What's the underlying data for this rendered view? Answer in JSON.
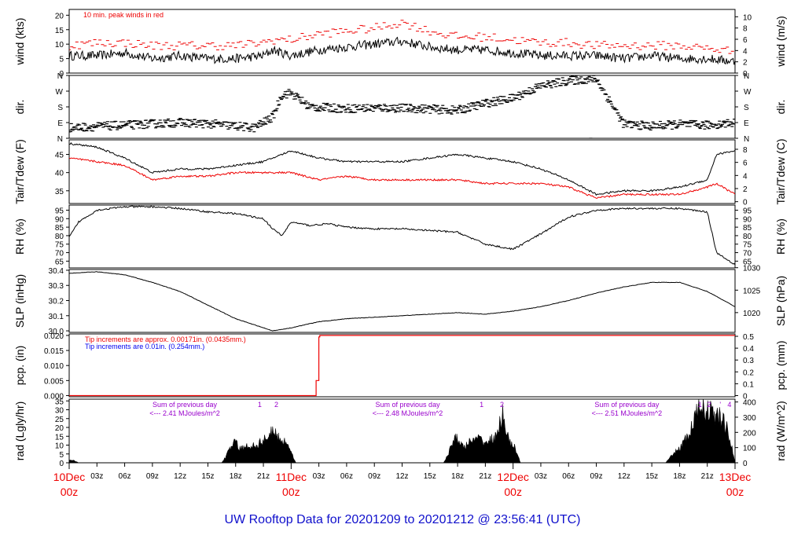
{
  "footer_title": "UW Rooftop Data for 20201209  to  20201212 @ 23:56:41  (UTC)",
  "colors": {
    "red": "#ee0000",
    "blue": "#0000ee",
    "purple": "#9900cc",
    "footer": "#1010cc",
    "black": "#000000"
  },
  "time_axis": {
    "hours_total": 72,
    "tick_hours": [
      3,
      6,
      9,
      12,
      15,
      18,
      21,
      27,
      30,
      33,
      36,
      39,
      42,
      45,
      51,
      54,
      57,
      60,
      63,
      66,
      69
    ],
    "tick_labels": [
      "03z",
      "06z",
      "09z",
      "12z",
      "15z",
      "18z",
      "21z",
      "03z",
      "06z",
      "09z",
      "12z",
      "15z",
      "18z",
      "21z",
      "03z",
      "06z",
      "09z",
      "12z",
      "15z",
      "18z",
      "21z"
    ],
    "day_marks": [
      {
        "hour": 0,
        "label": "10Dec",
        "sub": "00z"
      },
      {
        "hour": 24,
        "label": "11Dec",
        "sub": "00z"
      },
      {
        "hour": 48,
        "label": "12Dec",
        "sub": "00z"
      },
      {
        "hour": 72,
        "label": "13Dec",
        "sub": "00z"
      }
    ]
  },
  "chart_data": [
    {
      "id": "wind",
      "type": "line",
      "ylabel": "wind (kts)",
      "y2label": "wind (m/s)",
      "ylim": [
        0,
        22
      ],
      "yticks": [
        0,
        5,
        10,
        15,
        20
      ],
      "y2lim": [
        0,
        11.3
      ],
      "y2ticks": [
        0,
        2,
        4,
        6,
        8,
        10
      ],
      "annotation": "10 min. peak winds in red",
      "series": [
        {
          "name": "wind",
          "color": "#000000",
          "x": [
            0,
            3,
            6,
            9,
            12,
            15,
            18,
            21,
            22,
            24,
            27,
            30,
            33,
            36,
            39,
            42,
            45,
            48,
            51,
            54,
            57,
            60,
            63,
            66,
            69,
            72
          ],
          "y": [
            6,
            6,
            7,
            5,
            6,
            5,
            5,
            6,
            8,
            6,
            8,
            9,
            10,
            11,
            9,
            8,
            8,
            7,
            6,
            6,
            6,
            5,
            6,
            5,
            5,
            4
          ]
        },
        {
          "name": "peak",
          "color": "#ee0000",
          "x": [
            0,
            3,
            6,
            9,
            12,
            15,
            18,
            21,
            22,
            24,
            27,
            30,
            33,
            36,
            39,
            42,
            45,
            48,
            51,
            54,
            57,
            60,
            63,
            66,
            69,
            72
          ],
          "y": [
            8,
            9,
            9,
            8,
            8,
            8,
            8,
            9,
            10,
            10,
            12,
            13,
            14,
            16,
            13,
            11,
            11,
            10,
            9,
            9,
            8,
            8,
            8,
            8,
            7,
            6
          ]
        }
      ]
    },
    {
      "id": "dir",
      "type": "scatter",
      "ylabel": "dir.",
      "y2label": "dir.",
      "ylim": [
        0,
        360
      ],
      "yticklabels": [
        "N",
        "E",
        "S",
        "W",
        "N"
      ],
      "series": [
        {
          "name": "dir",
          "x": [
            0,
            4,
            8,
            12,
            16,
            20,
            22,
            23,
            24,
            26,
            30,
            34,
            38,
            42,
            45,
            48,
            51,
            54,
            57,
            60,
            63,
            66,
            69,
            72
          ],
          "y": [
            60,
            70,
            80,
            90,
            80,
            60,
            120,
            250,
            260,
            180,
            170,
            175,
            170,
            160,
            200,
            230,
            300,
            330,
            340,
            80,
            70,
            80,
            75,
            90
          ]
        }
      ]
    },
    {
      "id": "temp",
      "type": "line",
      "ylabel": "Tair/Tdew (F)",
      "y2label": "Tair/Tdew (C)",
      "ylim": [
        31.5,
        49
      ],
      "yticks": [
        35,
        40,
        45
      ],
      "y2lim": [
        -0.28,
        9.44
      ],
      "y2ticks": [
        0,
        2,
        4,
        6,
        8
      ],
      "series": [
        {
          "name": "Tair",
          "color": "#000000",
          "x": [
            0,
            3,
            6,
            9,
            12,
            15,
            18,
            21,
            24,
            27,
            30,
            33,
            36,
            39,
            42,
            45,
            48,
            51,
            54,
            57,
            60,
            63,
            66,
            69,
            70,
            72
          ],
          "y": [
            48,
            47,
            44,
            40,
            41,
            41,
            42,
            43,
            46,
            44,
            43,
            43,
            43,
            44,
            45,
            44,
            43,
            41,
            38,
            34,
            35,
            35,
            36,
            38,
            45,
            46
          ]
        },
        {
          "name": "Tdew",
          "color": "#ee0000",
          "x": [
            0,
            3,
            6,
            9,
            12,
            15,
            18,
            21,
            24,
            27,
            30,
            33,
            36,
            39,
            42,
            45,
            48,
            51,
            54,
            57,
            60,
            63,
            66,
            69,
            70,
            72
          ],
          "y": [
            44,
            43,
            42,
            38,
            39,
            39,
            40,
            40,
            40,
            38,
            39,
            38,
            38,
            38,
            38,
            37,
            37,
            37,
            36,
            33,
            34,
            34,
            34,
            36,
            37,
            34
          ]
        }
      ]
    },
    {
      "id": "rh",
      "type": "line",
      "ylabel": "RH (%)",
      "y2label": "RH (%)",
      "ylim": [
        61,
        98
      ],
      "yticks": [
        65,
        70,
        75,
        80,
        85,
        90,
        95
      ],
      "series": [
        {
          "name": "RH",
          "color": "#000000",
          "x": [
            0,
            1,
            3,
            6,
            9,
            12,
            15,
            18,
            21,
            22,
            23,
            24,
            26,
            28,
            30,
            33,
            36,
            39,
            42,
            45,
            48,
            51,
            54,
            57,
            60,
            63,
            66,
            69,
            70,
            72
          ],
          "y": [
            79,
            88,
            95,
            97,
            97,
            96,
            94,
            93,
            90,
            84,
            80,
            88,
            86,
            87,
            85,
            84,
            84,
            83,
            82,
            75,
            72,
            81,
            91,
            95,
            96,
            96,
            96,
            94,
            70,
            63
          ]
        }
      ]
    },
    {
      "id": "slp",
      "type": "line",
      "ylabel": "SLP (inHg)",
      "y2label": "SLP (hPa)",
      "ylim": [
        29.99,
        30.405
      ],
      "yticks": [
        30.0,
        30.1,
        30.2,
        30.3,
        30.4
      ],
      "y2lim": [
        1015.6,
        1029.6
      ],
      "y2ticks": [
        1020,
        1025,
        1030
      ],
      "series": [
        {
          "name": "SLP",
          "color": "#000000",
          "x": [
            0,
            3,
            6,
            9,
            12,
            15,
            18,
            21,
            22,
            24,
            27,
            30,
            33,
            36,
            39,
            42,
            45,
            48,
            51,
            54,
            57,
            60,
            63,
            66,
            69,
            72
          ],
          "y": [
            30.38,
            30.39,
            30.37,
            30.32,
            30.26,
            30.17,
            30.08,
            30.02,
            30.0,
            30.02,
            30.06,
            30.08,
            30.09,
            30.1,
            30.11,
            30.12,
            30.11,
            30.13,
            30.16,
            30.2,
            30.25,
            30.29,
            30.32,
            30.32,
            30.26,
            30.16
          ]
        }
      ]
    },
    {
      "id": "pcp",
      "type": "line",
      "ylabel": "pcp. (in)",
      "y2label": "pcp. (mm)",
      "ylim": [
        -0.0004,
        0.0205
      ],
      "yticks": [
        0.0,
        0.005,
        0.01,
        0.015,
        0.02
      ],
      "y2lim": [
        -0.01,
        0.52
      ],
      "y2ticks": [
        0,
        0.1,
        0.2,
        0.3,
        0.4,
        0.5
      ],
      "notes": [
        "Tip increments are approx. 0.00171in. (0.0435mm.)",
        "Tip increments are 0.01in. (0.254mm.)"
      ],
      "series": [
        {
          "name": "red",
          "color": "#ee0000",
          "x": [
            0,
            26.7,
            26.7,
            27.0,
            27.0,
            27.1,
            27.1,
            72
          ],
          "y": [
            0,
            0,
            0.005,
            0.005,
            0.0195,
            0.0195,
            0.02,
            0.02
          ]
        }
      ]
    },
    {
      "id": "rad",
      "type": "area",
      "ylabel": "rad (Lgly/hr)",
      "y2label": "rad (W/m^2)",
      "ylim": [
        0,
        36
      ],
      "yticks": [
        0,
        5,
        10,
        15,
        20,
        25,
        30,
        35
      ],
      "y2lim": [
        0,
        418.6
      ],
      "y2ticks": [
        0,
        100,
        200,
        300,
        400
      ],
      "daily_notes": [
        {
          "hour": 12.5,
          "line1": "Sum of previous day",
          "line2": "<--- 2.41 MJoules/m^2"
        },
        {
          "hour": 36.6,
          "line1": "Sum of previous day",
          "line2": "<--- 2.48 MJoules/m^2"
        },
        {
          "hour": 60.3,
          "line1": "Sum of previous day",
          "line2": "<--- 2.51 MJoules/m^2"
        }
      ],
      "markers": [
        {
          "hour": 20.6,
          "label": "1"
        },
        {
          "hour": 22.4,
          "label": "2"
        },
        {
          "hour": 44.6,
          "label": "1"
        },
        {
          "hour": 46.8,
          "label": "2"
        },
        {
          "hour": 68.2,
          "label": "1"
        },
        {
          "hour": 69.2,
          "label": "2"
        },
        {
          "hour": 70.4,
          "label": "'"
        },
        {
          "hour": 71.4,
          "label": "4"
        }
      ],
      "series": [
        {
          "name": "rad",
          "color": "#000000",
          "x": [
            0,
            0.6,
            1.0,
            16.5,
            17.0,
            17.8,
            18.5,
            19.5,
            20.5,
            21.3,
            22.0,
            22.8,
            23.7,
            24.5,
            40.5,
            41.0,
            41.8,
            42.5,
            43.3,
            44.3,
            45.2,
            46.3,
            46.9,
            47.5,
            48.3,
            48.8,
            64.5,
            65.0,
            66.0,
            67.0,
            67.8,
            68.5,
            69.0,
            69.8,
            70.5,
            71.3,
            72.0
          ],
          "y": [
            1.5,
            1.2,
            0,
            0,
            4,
            13,
            8,
            10,
            11,
            15,
            18,
            14,
            11,
            0,
            0,
            5,
            17,
            9,
            12,
            14,
            12,
            16,
            30,
            13,
            8,
            0,
            0,
            3,
            9,
            16,
            28,
            34,
            31,
            28,
            26,
            18,
            0
          ]
        }
      ]
    }
  ]
}
